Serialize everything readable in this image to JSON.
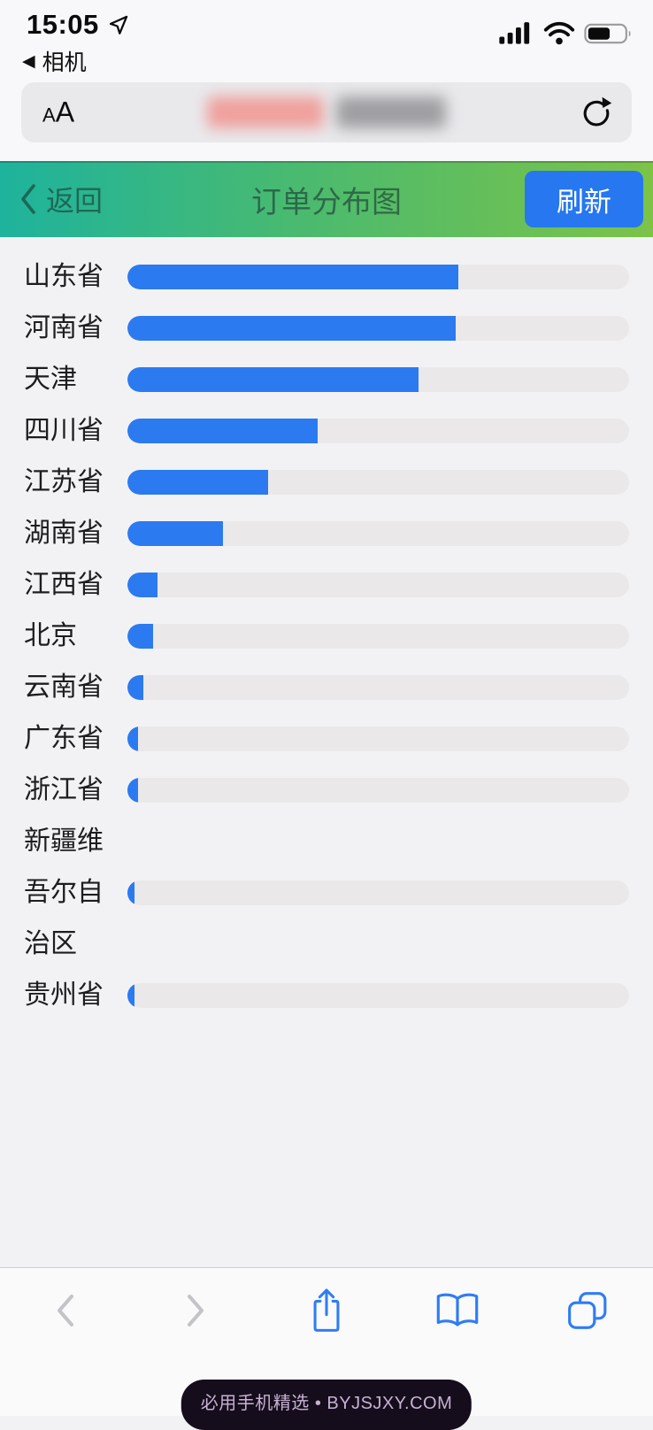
{
  "status_bar": {
    "time": "15:05",
    "back_triangle": "◀",
    "back_app_label": "相机",
    "icons": [
      "location-arrow",
      "cellular-signal-4bars",
      "wifi",
      "battery-60pct"
    ]
  },
  "url_bar": {
    "text_size_label": "AA",
    "address_state": "redacted-blur",
    "reload_icon": "reload"
  },
  "nav": {
    "back_label": "返回",
    "title": "订单分布图",
    "refresh_label": "刷新",
    "gradient_left": "#1eb39d",
    "gradient_right": "#7cc348",
    "refresh_button_color": "#2677f0"
  },
  "chart_data": {
    "type": "bar",
    "orientation": "horizontal",
    "title": "订单分布图",
    "categories": [
      "山东省",
      "河南省",
      "天津",
      "四川省",
      "江苏省",
      "湖南省",
      "江西省",
      "北京",
      "云南省",
      "广东省",
      "浙江省",
      "新疆维吾尔自治区",
      "贵州省"
    ],
    "values": [
      66,
      65.5,
      58,
      38,
      28,
      19,
      6,
      5.1,
      3.2,
      2.1,
      2.1,
      1.4,
      1.4
    ],
    "values_unit": "estimated percent of full track (no numeric labels shown in UI)",
    "xlim": [
      0,
      100
    ],
    "grid": false,
    "legend": false,
    "bar_color": "#2b7af0",
    "track_color": "#eae8e9",
    "label_color": "#1d1d1f"
  },
  "toolbar": {
    "icons": [
      "back-chevron",
      "forward-chevron",
      "share",
      "bookmarks",
      "tabs"
    ],
    "icon_color": "#2f7cf5",
    "disabled_color": "#c3c3c8"
  },
  "watermark": {
    "text": "必用手机精选 • BYJSJXY.COM"
  },
  "colors": {
    "page_background": "#f2f2f4",
    "top_background": "#f8f8fa",
    "url_pill": "#e9e9ec",
    "toolbar_background": "#fafafa"
  }
}
